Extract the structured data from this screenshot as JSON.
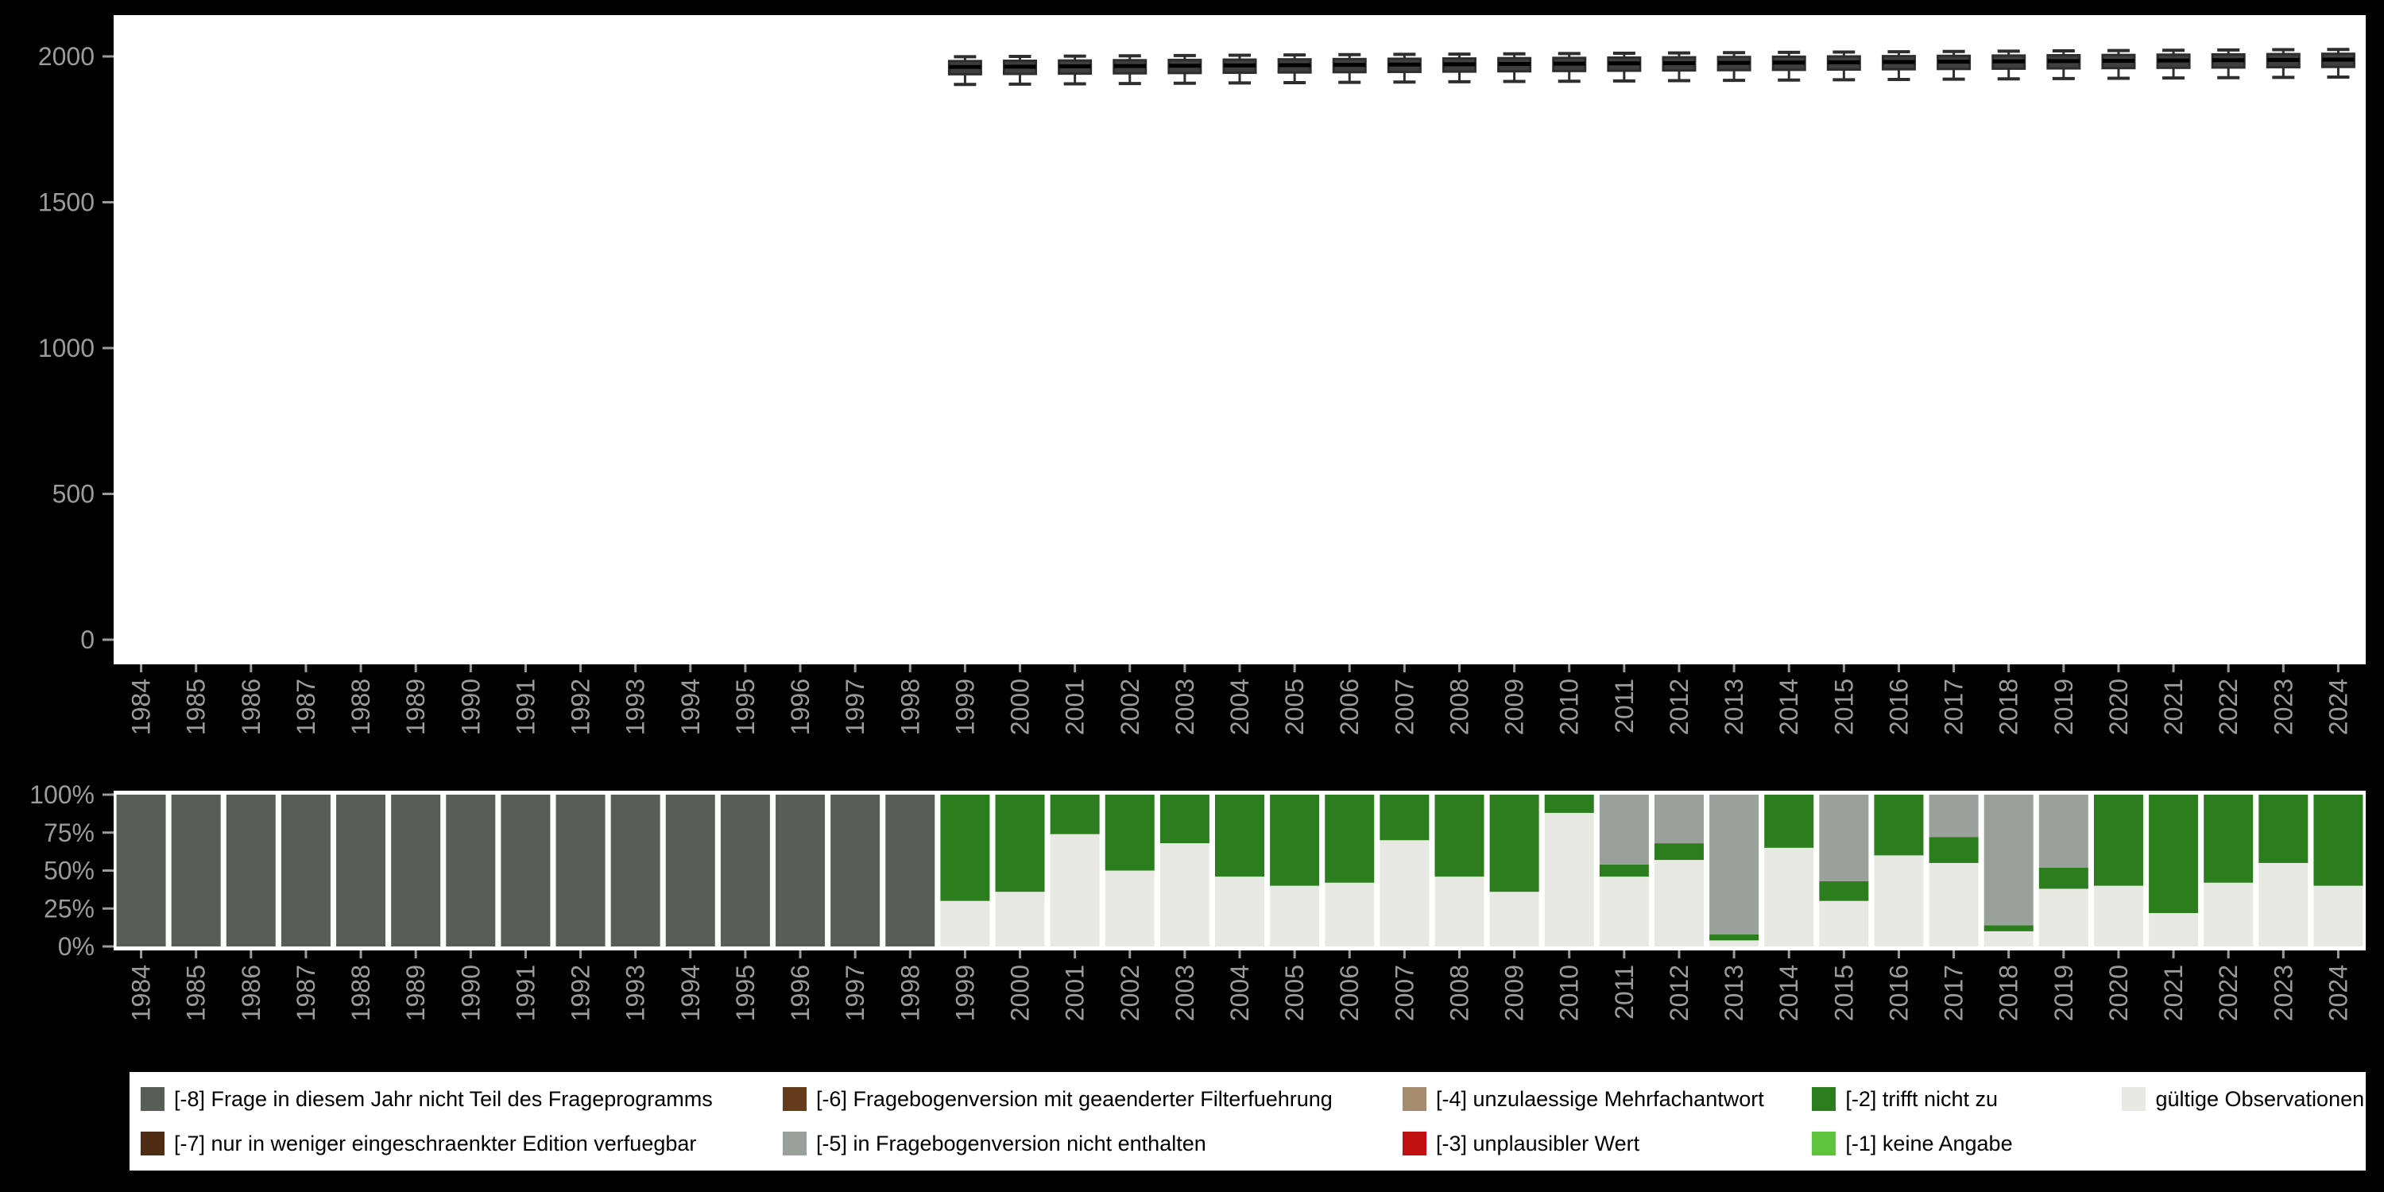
{
  "colors": {
    "background": "#000000",
    "panel": "#ffffff",
    "axis_text": "#9b9b9b",
    "box_stroke": "#2e2e2e",
    "box_fill": "#3f3f3f",
    "median": "#000000",
    "codes": {
      "neg8": "#565e56",
      "neg7": "#4f2c14",
      "neg6": "#643c1c",
      "neg5": "#9aa09a",
      "neg4": "#a58c6f",
      "neg3": "#c01112",
      "neg2": "#2c7d1e",
      "neg1": "#5ec43e",
      "valid": "#e9e9e3"
    }
  },
  "legend": {
    "items": [
      {
        "key": "neg8",
        "label": "[-8] Frage in diesem Jahr nicht Teil des Frageprogramms"
      },
      {
        "key": "neg7",
        "label": "[-7] nur in weniger eingeschraenkter Edition verfuegbar"
      },
      {
        "key": "neg6",
        "label": "[-6] Fragebogenversion mit geaenderter Filterfuehrung"
      },
      {
        "key": "neg5",
        "label": "[-5] in Fragebogenversion nicht enthalten"
      },
      {
        "key": "neg4",
        "label": "[-4] unzulaessige Mehrfachantwort"
      },
      {
        "key": "neg3",
        "label": "[-3] unplausibler Wert"
      },
      {
        "key": "neg2",
        "label": "[-2] trifft nicht zu"
      },
      {
        "key": "neg1",
        "label": "[-1] keine Angabe"
      },
      {
        "key": "valid",
        "label": "gültige Observationen"
      }
    ]
  },
  "chart_data": [
    {
      "type": "boxplot",
      "title": "",
      "xlabel": "",
      "ylabel": "",
      "ylim": [
        0,
        2000
      ],
      "yticks": [
        0,
        500,
        1000,
        1500,
        2000
      ],
      "categories": [
        1984,
        1985,
        1986,
        1987,
        1988,
        1989,
        1990,
        1991,
        1992,
        1993,
        1994,
        1995,
        1996,
        1997,
        1998,
        1999,
        2000,
        2001,
        2002,
        2003,
        2004,
        2005,
        2006,
        2007,
        2008,
        2009,
        2010,
        2011,
        2012,
        2013,
        2014,
        2015,
        2016,
        2017,
        2018,
        2019,
        2020,
        2021,
        2022,
        2023,
        2024
      ],
      "series": [
        {
          "year": 1999,
          "min": 1904,
          "q1": 1939,
          "median": 1964,
          "q3": 1984,
          "max": 1999
        },
        {
          "year": 2000,
          "min": 1905,
          "q1": 1940,
          "median": 1965,
          "q3": 1985,
          "max": 2000
        },
        {
          "year": 2001,
          "min": 1906,
          "q1": 1941,
          "median": 1966,
          "q3": 1986,
          "max": 2001
        },
        {
          "year": 2002,
          "min": 1907,
          "q1": 1942,
          "median": 1967,
          "q3": 1987,
          "max": 2002
        },
        {
          "year": 2003,
          "min": 1908,
          "q1": 1943,
          "median": 1968,
          "q3": 1988,
          "max": 2003
        },
        {
          "year": 2004,
          "min": 1909,
          "q1": 1944,
          "median": 1969,
          "q3": 1989,
          "max": 2004
        },
        {
          "year": 2005,
          "min": 1910,
          "q1": 1945,
          "median": 1970,
          "q3": 1990,
          "max": 2005
        },
        {
          "year": 2006,
          "min": 1911,
          "q1": 1946,
          "median": 1971,
          "q3": 1991,
          "max": 2006
        },
        {
          "year": 2007,
          "min": 1912,
          "q1": 1947,
          "median": 1972,
          "q3": 1992,
          "max": 2007
        },
        {
          "year": 2008,
          "min": 1913,
          "q1": 1948,
          "median": 1973,
          "q3": 1993,
          "max": 2008
        },
        {
          "year": 2009,
          "min": 1914,
          "q1": 1949,
          "median": 1974,
          "q3": 1994,
          "max": 2009
        },
        {
          "year": 2010,
          "min": 1915,
          "q1": 1950,
          "median": 1975,
          "q3": 1995,
          "max": 2010
        },
        {
          "year": 2011,
          "min": 1916,
          "q1": 1951,
          "median": 1976,
          "q3": 1996,
          "max": 2011
        },
        {
          "year": 2012,
          "min": 1917,
          "q1": 1952,
          "median": 1977,
          "q3": 1997,
          "max": 2012
        },
        {
          "year": 2013,
          "min": 1918,
          "q1": 1953,
          "median": 1978,
          "q3": 1998,
          "max": 2013
        },
        {
          "year": 2014,
          "min": 1919,
          "q1": 1954,
          "median": 1979,
          "q3": 1999,
          "max": 2014
        },
        {
          "year": 2015,
          "min": 1920,
          "q1": 1955,
          "median": 1980,
          "q3": 2000,
          "max": 2015
        },
        {
          "year": 2016,
          "min": 1921,
          "q1": 1956,
          "median": 1981,
          "q3": 2001,
          "max": 2016
        },
        {
          "year": 2017,
          "min": 1922,
          "q1": 1957,
          "median": 1982,
          "q3": 2002,
          "max": 2017
        },
        {
          "year": 2018,
          "min": 1923,
          "q1": 1958,
          "median": 1983,
          "q3": 2003,
          "max": 2018
        },
        {
          "year": 2019,
          "min": 1924,
          "q1": 1959,
          "median": 1984,
          "q3": 2004,
          "max": 2019
        },
        {
          "year": 2020,
          "min": 1925,
          "q1": 1960,
          "median": 1985,
          "q3": 2005,
          "max": 2020
        },
        {
          "year": 2021,
          "min": 1926,
          "q1": 1961,
          "median": 1986,
          "q3": 2006,
          "max": 2021
        },
        {
          "year": 2022,
          "min": 1927,
          "q1": 1962,
          "median": 1987,
          "q3": 2007,
          "max": 2022
        },
        {
          "year": 2023,
          "min": 1928,
          "q1": 1963,
          "median": 1988,
          "q3": 2008,
          "max": 2023
        },
        {
          "year": 2024,
          "min": 1929,
          "q1": 1964,
          "median": 1989,
          "q3": 2009,
          "max": 2024
        }
      ]
    },
    {
      "type": "bar",
      "stacked": true,
      "percent": true,
      "title": "",
      "xlabel": "",
      "ylabel": "",
      "yticks": [
        0,
        25,
        50,
        75,
        100
      ],
      "categories": [
        1984,
        1985,
        1986,
        1987,
        1988,
        1989,
        1990,
        1991,
        1992,
        1993,
        1994,
        1995,
        1996,
        1997,
        1998,
        1999,
        2000,
        2001,
        2002,
        2003,
        2004,
        2005,
        2006,
        2007,
        2008,
        2009,
        2010,
        2011,
        2012,
        2013,
        2014,
        2015,
        2016,
        2017,
        2018,
        2019,
        2020,
        2021,
        2022,
        2023,
        2024
      ],
      "series": [
        {
          "name": "gültige Observationen",
          "key": "valid",
          "values": [
            0,
            0,
            0,
            0,
            0,
            0,
            0,
            0,
            0,
            0,
            0,
            0,
            0,
            0,
            0,
            30,
            36,
            74,
            50,
            68,
            46,
            40,
            42,
            70,
            46,
            36,
            88,
            46,
            57,
            4,
            65,
            30,
            60,
            55,
            10,
            38,
            40,
            22,
            42,
            55,
            40
          ]
        },
        {
          "name": "[-2] trifft nicht zu",
          "key": "neg2",
          "values": [
            0,
            0,
            0,
            0,
            0,
            0,
            0,
            0,
            0,
            0,
            0,
            0,
            0,
            0,
            0,
            70,
            64,
            26,
            50,
            32,
            54,
            60,
            58,
            30,
            54,
            64,
            12,
            8,
            11,
            4,
            35,
            13,
            40,
            17,
            4,
            14,
            60,
            78,
            58,
            45,
            60
          ]
        },
        {
          "name": "[-5] in Fragebogenversion nicht enthalten",
          "key": "neg5",
          "values": [
            0,
            0,
            0,
            0,
            0,
            0,
            0,
            0,
            0,
            0,
            0,
            0,
            0,
            0,
            0,
            0,
            0,
            0,
            0,
            0,
            0,
            0,
            0,
            0,
            0,
            0,
            0,
            46,
            32,
            92,
            0,
            57,
            0,
            28,
            86,
            48,
            0,
            0,
            0,
            0,
            0
          ]
        },
        {
          "name": "[-8] Frage in diesem Jahr nicht Teil des Frageprogramms",
          "key": "neg8",
          "values": [
            100,
            100,
            100,
            100,
            100,
            100,
            100,
            100,
            100,
            100,
            100,
            100,
            100,
            100,
            100,
            0,
            0,
            0,
            0,
            0,
            0,
            0,
            0,
            0,
            0,
            0,
            0,
            0,
            0,
            0,
            0,
            0,
            0,
            0,
            0,
            0,
            0,
            0,
            0,
            0,
            0
          ]
        }
      ]
    }
  ]
}
